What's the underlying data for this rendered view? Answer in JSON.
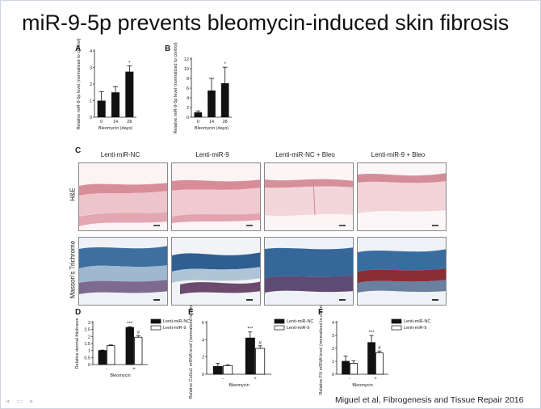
{
  "slide": {
    "title": "miR-9-5p prevents bleomycin-induced skin fibrosis",
    "citation": "Miguel et al, Fibrogenesis and Tissue Repair 2016"
  },
  "colors": {
    "black_bar": "#111111",
    "white_bar": "#ffffff",
    "he_stain": "#e7aeb8",
    "masson_blue": "#3d6f9e",
    "masson_red": "#8a2e33"
  },
  "panel_c": {
    "letter": "C",
    "columns": [
      "Lenti-miR-NC",
      "Lenti-miR-9",
      "Lenti-miR-NC + Bleo",
      "Lenti-miR-9 + Bleo"
    ],
    "rows": [
      "H&E",
      "Masson's Trichrome"
    ]
  },
  "chart_data": [
    {
      "letter": "A",
      "type": "bar",
      "categories": [
        "0",
        "14",
        "28"
      ],
      "values": [
        1.0,
        1.5,
        2.75
      ],
      "errors": [
        0.55,
        0.35,
        0.35
      ],
      "ylim": [
        0,
        4
      ],
      "yticks": [
        0,
        1,
        2,
        3,
        4
      ],
      "ylabel": "Relative miR-9-5p level (normalized to control)",
      "xlabel": "Bleomycin (days)",
      "annotations": [
        "",
        "",
        "*"
      ]
    },
    {
      "letter": "B",
      "type": "bar",
      "categories": [
        "0",
        "14",
        "28"
      ],
      "values": [
        1.0,
        5.5,
        7.0
      ],
      "errors": [
        0.3,
        2.5,
        3.3
      ],
      "ylim": [
        0,
        12
      ],
      "yticks": [
        0,
        2,
        4,
        6,
        8,
        10,
        12
      ],
      "ylabel": "Relative miR-9-5p level (normalized to control)",
      "xlabel": "Bleomycin (days)",
      "annotations": [
        "",
        "",
        "*"
      ]
    },
    {
      "letter": "D",
      "type": "bar",
      "xgroups": [
        "-",
        "+"
      ],
      "xlabel": "Bleomycin",
      "ylabel": "Relative dermal thickness",
      "ylim": [
        0,
        3
      ],
      "yticks": [
        0,
        0.5,
        1,
        1.5,
        2,
        2.5,
        3
      ],
      "series": [
        {
          "name": "Lenti-miR-NC",
          "values": [
            1.0,
            2.65
          ],
          "errors": [
            0.03,
            0.05
          ],
          "annotations": [
            "",
            "***"
          ]
        },
        {
          "name": "Lenti-miR-9",
          "values": [
            1.35,
            1.95
          ],
          "errors": [
            0.05,
            0.12
          ],
          "annotations": [
            "",
            "#"
          ]
        }
      ]
    },
    {
      "letter": "E",
      "type": "bar",
      "xgroups": [
        "-",
        "+"
      ],
      "xlabel": "Bleomycin",
      "ylabel": "Relative Col1α1 mRNA level (normalized to control)",
      "ylim": [
        0,
        6
      ],
      "yticks": [
        0,
        2,
        4,
        6
      ],
      "series": [
        {
          "name": "Lenti-miR-NC",
          "values": [
            0.9,
            4.2
          ],
          "errors": [
            0.35,
            0.7
          ],
          "annotations": [
            "",
            "***"
          ]
        },
        {
          "name": "Lenti-miR-9",
          "values": [
            1.0,
            3.0
          ],
          "errors": [
            0.1,
            0.3
          ],
          "annotations": [
            "",
            "#"
          ]
        }
      ]
    },
    {
      "letter": "F",
      "type": "bar",
      "xgroups": [
        "-",
        "+"
      ],
      "xlabel": "Bleomycin",
      "ylabel": "Relative FN mRNA level (normalized to control)",
      "ylim": [
        0,
        4
      ],
      "yticks": [
        0,
        1,
        2,
        3,
        4
      ],
      "series": [
        {
          "name": "Lenti-miR-NC",
          "values": [
            1.0,
            2.45
          ],
          "errors": [
            0.4,
            0.55
          ],
          "annotations": [
            "",
            "***"
          ]
        },
        {
          "name": "Lenti-miR-9",
          "values": [
            0.85,
            1.65
          ],
          "errors": [
            0.2,
            0.15
          ],
          "annotations": [
            "",
            "#"
          ]
        }
      ]
    }
  ]
}
